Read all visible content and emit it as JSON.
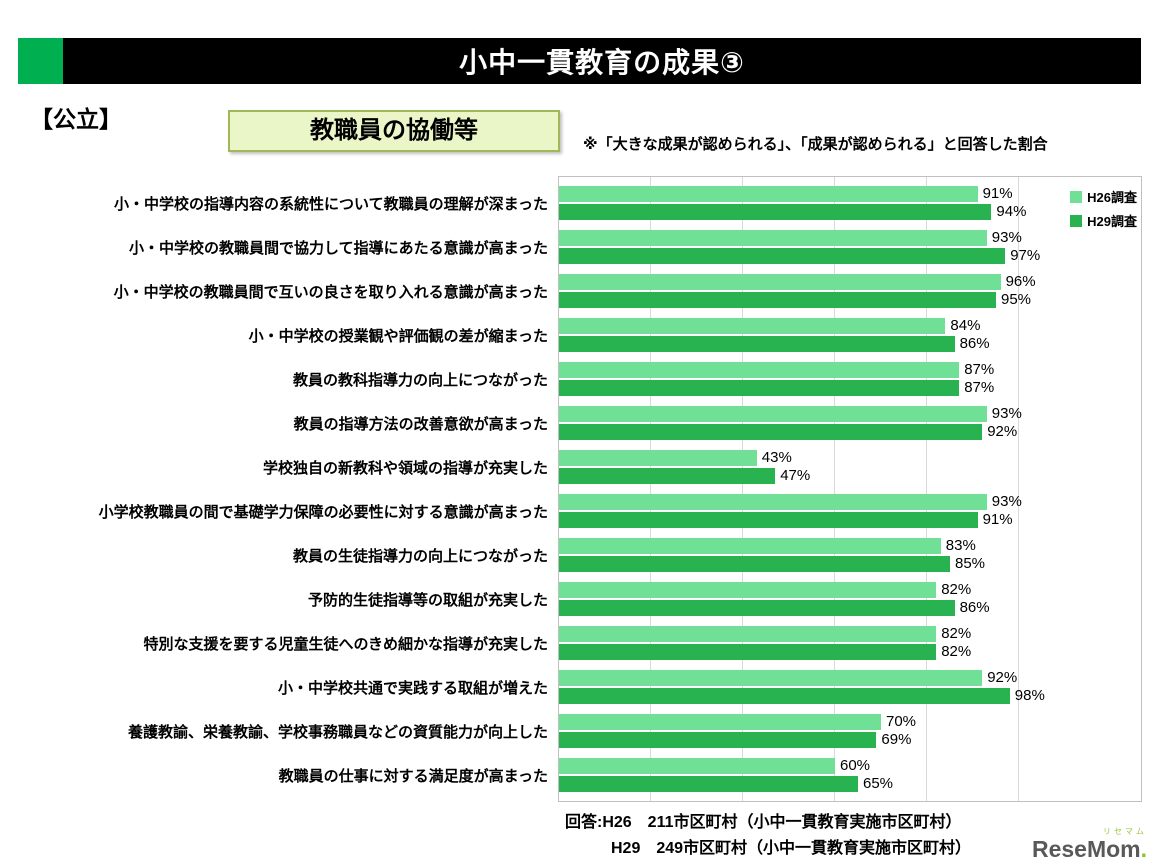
{
  "page": {
    "header": {
      "title": "小中一貫教育の成果③"
    },
    "public_label": "【公立】",
    "box_title": "教職員の協働等",
    "note": "※「大きな成果が認められる」、「成果が認められる」と回答した割合",
    "footer": {
      "line1": "回答:H26　211市区町村（小中一貫教育実施市区町村）",
      "line2": "H29　249市区町村（小中一貫教育実施市区町村）"
    },
    "logo": {
      "ruby": "リセマム",
      "text": "ReseMom",
      "dot": "."
    }
  },
  "colors": {
    "accent_green": "#00B050",
    "header_bg": "#000000",
    "h26_green": "#6FE095",
    "h29_green": "#29B350",
    "box_bg": "#EAF6C8",
    "box_border": "#A0B85A",
    "gridline": "#D9D9D9"
  },
  "chart_data": {
    "type": "bar",
    "orientation": "horizontal",
    "title": "教職員の協働等",
    "xlabel": "",
    "ylabel": "",
    "xlim": [
      0,
      100
    ],
    "gridlines_every": 20,
    "value_suffix": "%",
    "legend_position": "top-right",
    "categories": [
      "小・中学校の指導内容の系統性について教職員の理解が深まった",
      "小・中学校の教職員間で協力して指導にあたる意識が高まった",
      "小・中学校の教職員間で互いの良さを取り入れる意識が高まった",
      "小・中学校の授業観や評価観の差が縮まった",
      "教員の教科指導力の向上につながった",
      "教員の指導方法の改善意欲が高まった",
      "学校独自の新教科や領域の指導が充実した",
      "小学校教職員の間で基礎学力保障の必要性に対する意識が高まった",
      "教員の生徒指導力の向上につながった",
      "予防的生徒指導等の取組が充実した",
      "特別な支援を要する児童生徒へのきめ細かな指導が充実した",
      "小・中学校共通で実践する取組が増えた",
      "養護教諭、栄養教諭、学校事務職員などの資質能力が向上した",
      "教職員の仕事に対する満足度が高まった"
    ],
    "series": [
      {
        "name": "H26調査",
        "color": "#6FE095",
        "values": [
          91,
          93,
          96,
          84,
          87,
          93,
          43,
          93,
          83,
          82,
          82,
          92,
          70,
          60
        ]
      },
      {
        "name": "H29調査",
        "color": "#29B350",
        "values": [
          94,
          97,
          95,
          86,
          87,
          92,
          47,
          91,
          85,
          86,
          82,
          98,
          69,
          65
        ]
      }
    ]
  }
}
